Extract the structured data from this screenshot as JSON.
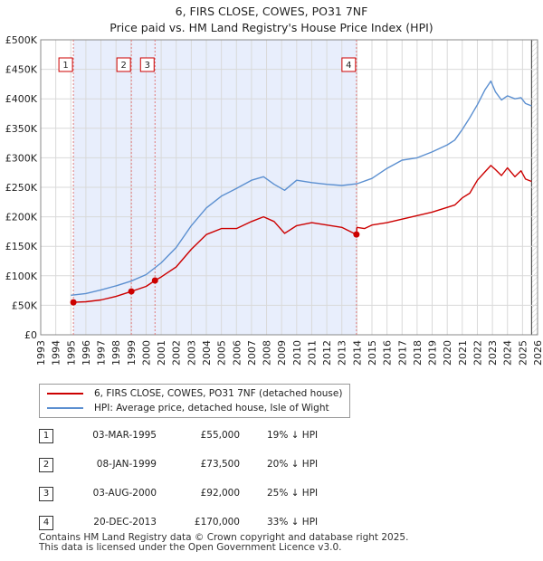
{
  "title_line1": "6, FIRS CLOSE, COWES, PO31 7NF",
  "title_line2": "Price paid vs. HM Land Registry's House Price Index (HPI)",
  "chart_data": {
    "type": "line",
    "ylim": [
      0,
      500000
    ],
    "xlim": [
      1993,
      2026
    ],
    "y_ticks": [
      0,
      50000,
      100000,
      150000,
      200000,
      250000,
      300000,
      350000,
      400000,
      450000,
      500000
    ],
    "y_tick_labels": [
      "£0",
      "£50K",
      "£100K",
      "£150K",
      "£200K",
      "£250K",
      "£300K",
      "£350K",
      "£400K",
      "£450K",
      "£500K"
    ],
    "x_ticks": [
      1993,
      1994,
      1995,
      1996,
      1997,
      1998,
      1999,
      2000,
      2001,
      2002,
      2003,
      2004,
      2005,
      2006,
      2007,
      2008,
      2009,
      2010,
      2011,
      2012,
      2013,
      2014,
      2015,
      2016,
      2017,
      2018,
      2019,
      2020,
      2021,
      2022,
      2023,
      2024,
      2025,
      2026
    ],
    "colors": {
      "property": "#cc0000",
      "hpi": "#5b8fd0",
      "shade": "#e8eefc",
      "grid": "#d9d9d9",
      "marker_line": "#e07a7a"
    },
    "series": [
      {
        "name": "6, FIRS CLOSE, COWES, PO31 7NF (detached house)",
        "x": [
          1995.17,
          1996,
          1997,
          1998,
          1999.02,
          2000,
          2000.59,
          2001,
          2002,
          2003,
          2004,
          2005,
          2006,
          2007,
          2007.8,
          2008.5,
          2009.2,
          2010,
          2011,
          2012,
          2013,
          2013.97,
          2014,
          2014.5,
          2015,
          2016,
          2017,
          2018,
          2019,
          2020,
          2020.5,
          2021,
          2021.5,
          2022,
          2022.5,
          2022.9,
          2023.2,
          2023.6,
          2024,
          2024.5,
          2024.9,
          2025.2,
          2025.6
        ],
        "values": [
          55000,
          56000,
          59000,
          65000,
          73500,
          82000,
          92000,
          98000,
          115000,
          145000,
          170000,
          180000,
          180000,
          192000,
          200000,
          192000,
          172000,
          185000,
          190000,
          186000,
          182000,
          170000,
          182000,
          180000,
          186000,
          190000,
          196000,
          202000,
          208000,
          216000,
          220000,
          232000,
          240000,
          262000,
          276000,
          287000,
          280000,
          270000,
          283000,
          268000,
          278000,
          264000,
          260000
        ]
      },
      {
        "name": "HPI: Average price, detached house, Isle of Wight",
        "x": [
          1995,
          1996,
          1997,
          1998,
          1999,
          2000,
          2001,
          2002,
          2003,
          2004,
          2005,
          2006,
          2007,
          2007.8,
          2008.5,
          2009.2,
          2010,
          2011,
          2012,
          2013,
          2014,
          2015,
          2016,
          2017,
          2018,
          2019,
          2020,
          2020.5,
          2021,
          2021.5,
          2022,
          2022.5,
          2022.9,
          2023.2,
          2023.6,
          2024,
          2024.5,
          2024.9,
          2025.2,
          2025.6
        ],
        "values": [
          67000,
          70000,
          76000,
          83000,
          91000,
          102000,
          122000,
          148000,
          185000,
          215000,
          235000,
          248000,
          262000,
          268000,
          255000,
          245000,
          262000,
          258000,
          255000,
          253000,
          256000,
          265000,
          282000,
          296000,
          300000,
          310000,
          322000,
          330000,
          348000,
          368000,
          390000,
          415000,
          430000,
          412000,
          398000,
          405000,
          400000,
          402000,
          392000,
          388000
        ]
      }
    ],
    "sales": [
      {
        "num": "1",
        "x": 1995.17,
        "price": 55000
      },
      {
        "num": "2",
        "x": 1999.02,
        "price": 73500
      },
      {
        "num": "3",
        "x": 2000.59,
        "price": 92000
      },
      {
        "num": "4",
        "x": 2013.97,
        "price": 170000
      }
    ],
    "shaded_span": [
      1995.17,
      2013.97
    ]
  },
  "legend": {
    "property_label": "6, FIRS CLOSE, COWES, PO31 7NF (detached house)",
    "hpi_label": "HPI: Average price, detached house, Isle of Wight"
  },
  "transactions": [
    {
      "num": "1",
      "date": "03-MAR-1995",
      "price": "£55,000",
      "hpi": "19% ↓ HPI"
    },
    {
      "num": "2",
      "date": "08-JAN-1999",
      "price": "£73,500",
      "hpi": "20% ↓ HPI"
    },
    {
      "num": "3",
      "date": "03-AUG-2000",
      "price": "£92,000",
      "hpi": "25% ↓ HPI"
    },
    {
      "num": "4",
      "date": "20-DEC-2013",
      "price": "£170,000",
      "hpi": "33% ↓ HPI"
    }
  ],
  "footer_line1": "Contains HM Land Registry data © Crown copyright and database right 2025.",
  "footer_line2": "This data is licensed under the Open Government Licence v3.0."
}
